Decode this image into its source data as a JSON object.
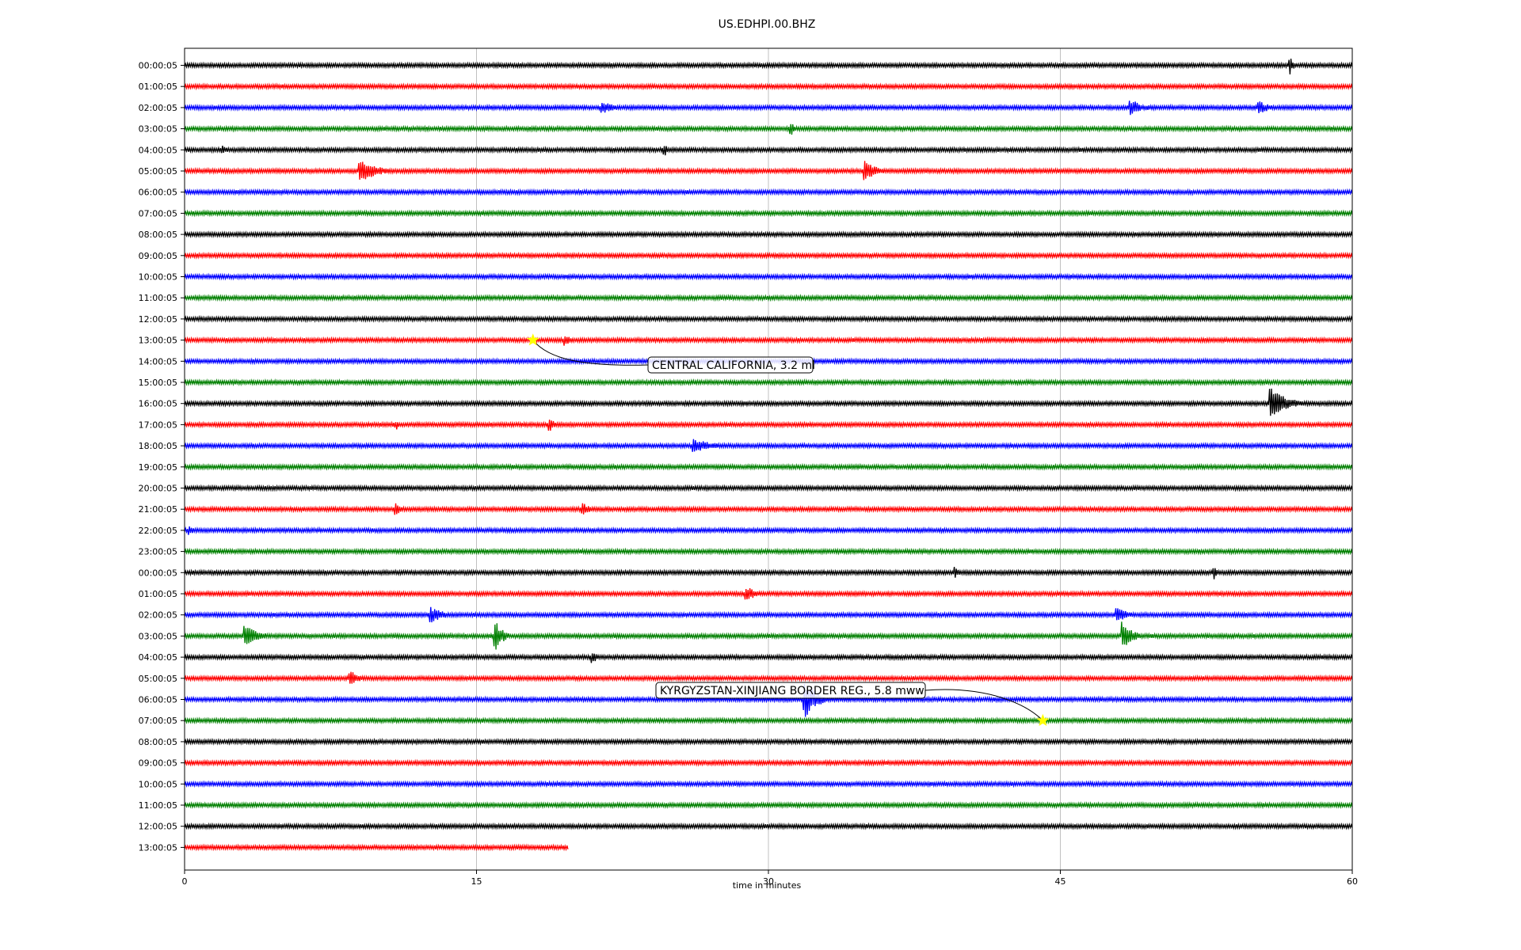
{
  "chart_data": {
    "type": "line",
    "title": "US.EDHPI.00.BHZ",
    "xlabel": "time in minutes",
    "ylabel": "",
    "xlim": [
      0,
      60
    ],
    "xticks": [
      0,
      15,
      30,
      45,
      60
    ],
    "grid": "vertical",
    "row_labels": [
      "00:00:05",
      "01:00:05",
      "02:00:05",
      "03:00:05",
      "04:00:05",
      "05:00:05",
      "06:00:05",
      "07:00:05",
      "08:00:05",
      "09:00:05",
      "10:00:05",
      "11:00:05",
      "12:00:05",
      "13:00:05",
      "14:00:05",
      "15:00:05",
      "16:00:05",
      "17:00:05",
      "18:00:05",
      "19:00:05",
      "20:00:05",
      "21:00:05",
      "22:00:05",
      "23:00:05",
      "00:00:05",
      "01:00:05",
      "02:00:05",
      "03:00:05",
      "04:00:05",
      "05:00:05",
      "06:00:05",
      "07:00:05",
      "08:00:05",
      "09:00:05",
      "10:00:05",
      "11:00:05",
      "12:00:05",
      "13:00:05"
    ],
    "trace_colors": [
      "#000000",
      "#ff0000",
      "#0000ff",
      "#008000"
    ],
    "last_row_end_minutes": 19.7,
    "bursts": [
      {
        "row": 0,
        "t": 56.8,
        "amp": 12,
        "dur": 0.3
      },
      {
        "row": 2,
        "t": 21.5,
        "amp": 9,
        "dur": 1.3
      },
      {
        "row": 2,
        "t": 48.6,
        "amp": 11,
        "dur": 1.4
      },
      {
        "row": 2,
        "t": 55.2,
        "amp": 10,
        "dur": 1.0
      },
      {
        "row": 3,
        "t": 31.2,
        "amp": 10,
        "dur": 0.3
      },
      {
        "row": 4,
        "t": 2.0,
        "amp": 7,
        "dur": 0.3
      },
      {
        "row": 4,
        "t": 24.7,
        "amp": 7,
        "dur": 0.3
      },
      {
        "row": 5,
        "t": 9.0,
        "amp": 16,
        "dur": 1.8
      },
      {
        "row": 5,
        "t": 35.0,
        "amp": 14,
        "dur": 1.2
      },
      {
        "row": 13,
        "t": 19.6,
        "amp": 8,
        "dur": 0.5
      },
      {
        "row": 16,
        "t": 55.8,
        "amp": 20,
        "dur": 1.8
      },
      {
        "row": 17,
        "t": 10.9,
        "amp": 6,
        "dur": 0.3
      },
      {
        "row": 17,
        "t": 18.8,
        "amp": 8,
        "dur": 0.8
      },
      {
        "row": 18,
        "t": 26.2,
        "amp": 9,
        "dur": 2.4
      },
      {
        "row": 21,
        "t": 10.9,
        "amp": 9,
        "dur": 0.3
      },
      {
        "row": 21,
        "t": 20.5,
        "amp": 8,
        "dur": 0.8
      },
      {
        "row": 22,
        "t": 0.3,
        "amp": 6,
        "dur": 0.4
      },
      {
        "row": 24,
        "t": 39.6,
        "amp": 8,
        "dur": 0.3
      },
      {
        "row": 24,
        "t": 52.9,
        "amp": 9,
        "dur": 0.3
      },
      {
        "row": 25,
        "t": 28.9,
        "amp": 10,
        "dur": 1.0
      },
      {
        "row": 26,
        "t": 12.7,
        "amp": 10,
        "dur": 1.4
      },
      {
        "row": 26,
        "t": 47.9,
        "amp": 11,
        "dur": 1.2
      },
      {
        "row": 27,
        "t": 3.1,
        "amp": 14,
        "dur": 1.6
      },
      {
        "row": 27,
        "t": 16.0,
        "amp": 20,
        "dur": 0.7
      },
      {
        "row": 27,
        "t": 48.2,
        "amp": 20,
        "dur": 1.0
      },
      {
        "row": 28,
        "t": 21.0,
        "amp": 8,
        "dur": 0.4
      },
      {
        "row": 29,
        "t": 8.5,
        "amp": 12,
        "dur": 0.8
      },
      {
        "row": 30,
        "t": 31.9,
        "amp": 24,
        "dur": 1.2
      }
    ],
    "annotations": [
      {
        "text": "CENTRAL CALIFORNIA, 3.2 ml",
        "row": 13,
        "t": 17.9
      },
      {
        "text": "KYRGYZSTAN-XINJIANG BORDER REG., 5.8 mww",
        "row": 31,
        "t": 44.1
      }
    ]
  }
}
